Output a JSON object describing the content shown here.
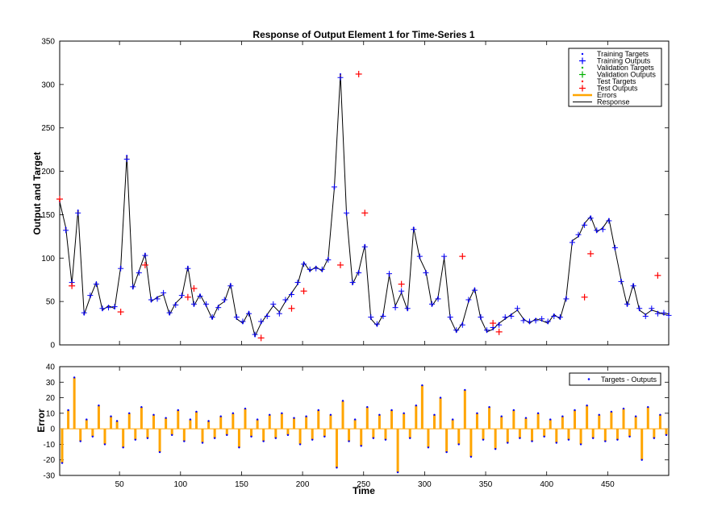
{
  "chart_data": [
    {
      "type": "line",
      "title": "Response of Output Element 1 for Time-Series 1",
      "xlabel": "",
      "ylabel": "Output and Target",
      "xlim": [
        1,
        500
      ],
      "ylim": [
        0,
        350
      ],
      "xticks": [
        50,
        100,
        150,
        200,
        250,
        300,
        350,
        400,
        450
      ],
      "yticks": [
        0,
        50,
        100,
        150,
        200,
        250,
        300,
        350
      ],
      "grid": false,
      "legend_position": "top-right",
      "legend": [
        {
          "label": "Training Targets",
          "marker": "dot",
          "color": "#0000FF"
        },
        {
          "label": "Training Outputs",
          "marker": "plus",
          "color": "#0000FF"
        },
        {
          "label": "Validation Targets",
          "marker": "dot",
          "color": "#00B000"
        },
        {
          "label": "Validation Outputs",
          "marker": "plus",
          "color": "#00B000"
        },
        {
          "label": "Test Targets",
          "marker": "dot",
          "color": "#FF0000"
        },
        {
          "label": "Test Outputs",
          "marker": "plus",
          "color": "#FF0000"
        },
        {
          "label": "Errors",
          "marker": "line",
          "color": "#FFA500"
        },
        {
          "label": "Response",
          "marker": "line",
          "color": "#000000"
        }
      ],
      "x": [
        1,
        6,
        11,
        16,
        21,
        26,
        31,
        36,
        41,
        46,
        51,
        56,
        61,
        66,
        71,
        76,
        81,
        86,
        91,
        96,
        101,
        106,
        111,
        116,
        121,
        126,
        131,
        136,
        141,
        146,
        151,
        156,
        161,
        166,
        171,
        176,
        181,
        186,
        191,
        196,
        201,
        206,
        211,
        216,
        221,
        226,
        231,
        236,
        241,
        246,
        251,
        256,
        261,
        266,
        271,
        276,
        281,
        286,
        291,
        296,
        301,
        306,
        311,
        316,
        321,
        326,
        331,
        336,
        341,
        346,
        351,
        356,
        361,
        366,
        371,
        376,
        381,
        386,
        391,
        396,
        401,
        406,
        411,
        416,
        421,
        426,
        431,
        436,
        441,
        446,
        451,
        456,
        461,
        466,
        471,
        476,
        481,
        486,
        491,
        496,
        500
      ],
      "series": [
        {
          "name": "Response",
          "values": [
            165,
            135,
            70,
            155,
            35,
            55,
            72,
            40,
            45,
            42,
            90,
            218,
            65,
            85,
            105,
            50,
            55,
            58,
            35,
            48,
            55,
            90,
            45,
            58,
            45,
            30,
            45,
            50,
            70,
            30,
            25,
            38,
            10,
            25,
            35,
            45,
            38,
            50,
            60,
            70,
            95,
            85,
            90,
            85,
            100,
            180,
            312,
            150,
            70,
            85,
            115,
            30,
            22,
            35,
            80,
            45,
            60,
            40,
            135,
            100,
            85,
            45,
            55,
            100,
            30,
            15,
            25,
            50,
            65,
            30,
            15,
            18,
            25,
            30,
            35,
            40,
            30,
            25,
            30,
            28,
            25,
            35,
            30,
            55,
            120,
            125,
            140,
            148,
            130,
            135,
            145,
            110,
            75,
            45,
            70,
            40,
            35,
            40,
            38,
            35,
            36
          ]
        },
        {
          "name": "Training Outputs",
          "values": [
            168,
            132,
            72,
            152,
            37,
            57,
            70,
            42,
            43,
            44,
            88,
            214,
            67,
            83,
            103,
            52,
            53,
            60,
            37,
            46,
            57,
            88,
            47,
            56,
            47,
            32,
            43,
            52,
            68,
            32,
            27,
            36,
            12,
            27,
            33,
            47,
            36,
            52,
            58,
            72,
            93,
            87,
            88,
            87,
            98,
            182,
            308,
            152,
            72,
            83,
            113,
            32,
            24,
            33,
            82,
            43,
            62,
            42,
            133,
            102,
            83,
            47,
            53,
            102,
            32,
            17,
            23,
            52,
            63,
            32,
            17,
            20,
            23,
            32,
            33,
            42,
            28,
            27,
            28,
            30,
            27,
            33,
            32,
            53,
            118,
            127,
            138,
            146,
            132,
            133,
            143,
            112,
            73,
            47,
            68,
            42,
            33,
            42,
            36,
            37,
            34
          ]
        }
      ],
      "test_outputs": [
        {
          "x": 1,
          "y": 168
        },
        {
          "x": 11,
          "y": 68
        },
        {
          "x": 51,
          "y": 38
        },
        {
          "x": 71,
          "y": 92
        },
        {
          "x": 106,
          "y": 55
        },
        {
          "x": 111,
          "y": 65
        },
        {
          "x": 166,
          "y": 8
        },
        {
          "x": 191,
          "y": 42
        },
        {
          "x": 201,
          "y": 62
        },
        {
          "x": 231,
          "y": 92
        },
        {
          "x": 246,
          "y": 312
        },
        {
          "x": 251,
          "y": 152
        },
        {
          "x": 281,
          "y": 70
        },
        {
          "x": 331,
          "y": 102
        },
        {
          "x": 356,
          "y": 25
        },
        {
          "x": 361,
          "y": 15
        },
        {
          "x": 431,
          "y": 55
        },
        {
          "x": 436,
          "y": 105
        },
        {
          "x": 491,
          "y": 80
        }
      ]
    },
    {
      "type": "bar",
      "title": "",
      "xlabel": "Time",
      "ylabel": "Error",
      "xlim": [
        1,
        500
      ],
      "ylim": [
        -30,
        40
      ],
      "xticks": [
        50,
        100,
        150,
        200,
        250,
        300,
        350,
        400,
        450
      ],
      "yticks": [
        -30,
        -20,
        -10,
        0,
        10,
        20,
        30,
        40
      ],
      "grid": false,
      "legend_position": "top-right",
      "legend": [
        {
          "label": "Targets - Outputs",
          "marker": "dot",
          "color": "#0000FF"
        }
      ],
      "x": [
        3,
        8,
        13,
        18,
        23,
        28,
        33,
        38,
        43,
        48,
        53,
        58,
        63,
        68,
        73,
        78,
        83,
        88,
        93,
        98,
        103,
        108,
        113,
        118,
        123,
        128,
        133,
        138,
        143,
        148,
        153,
        158,
        163,
        168,
        173,
        178,
        183,
        188,
        193,
        198,
        203,
        208,
        213,
        218,
        223,
        228,
        233,
        238,
        243,
        248,
        253,
        258,
        263,
        268,
        273,
        278,
        283,
        288,
        293,
        298,
        303,
        308,
        313,
        318,
        323,
        328,
        333,
        338,
        343,
        348,
        353,
        358,
        363,
        368,
        373,
        378,
        383,
        388,
        393,
        398,
        403,
        408,
        413,
        418,
        423,
        428,
        433,
        438,
        443,
        448,
        453,
        458,
        463,
        468,
        473,
        478,
        483,
        488,
        493,
        498
      ],
      "values": [
        -22,
        12,
        33,
        -8,
        6,
        -5,
        15,
        -10,
        8,
        5,
        -12,
        10,
        -7,
        14,
        -6,
        9,
        -15,
        7,
        -4,
        12,
        -8,
        6,
        11,
        -9,
        5,
        -6,
        8,
        -4,
        10,
        -12,
        13,
        -5,
        6,
        -8,
        9,
        -6,
        10,
        -4,
        7,
        -10,
        8,
        -7,
        12,
        -5,
        9,
        -25,
        18,
        -8,
        6,
        -11,
        14,
        -6,
        9,
        -7,
        12,
        -28,
        10,
        -6,
        15,
        28,
        -12,
        9,
        20,
        -15,
        6,
        -10,
        25,
        -18,
        10,
        -7,
        14,
        -13,
        8,
        -9,
        12,
        -6,
        7,
        -8,
        10,
        -5,
        6,
        -9,
        8,
        -7,
        12,
        -10,
        15,
        -6,
        9,
        -8,
        11,
        -7,
        13,
        -5,
        8,
        -20,
        14,
        -6,
        9,
        -4
      ]
    }
  ]
}
